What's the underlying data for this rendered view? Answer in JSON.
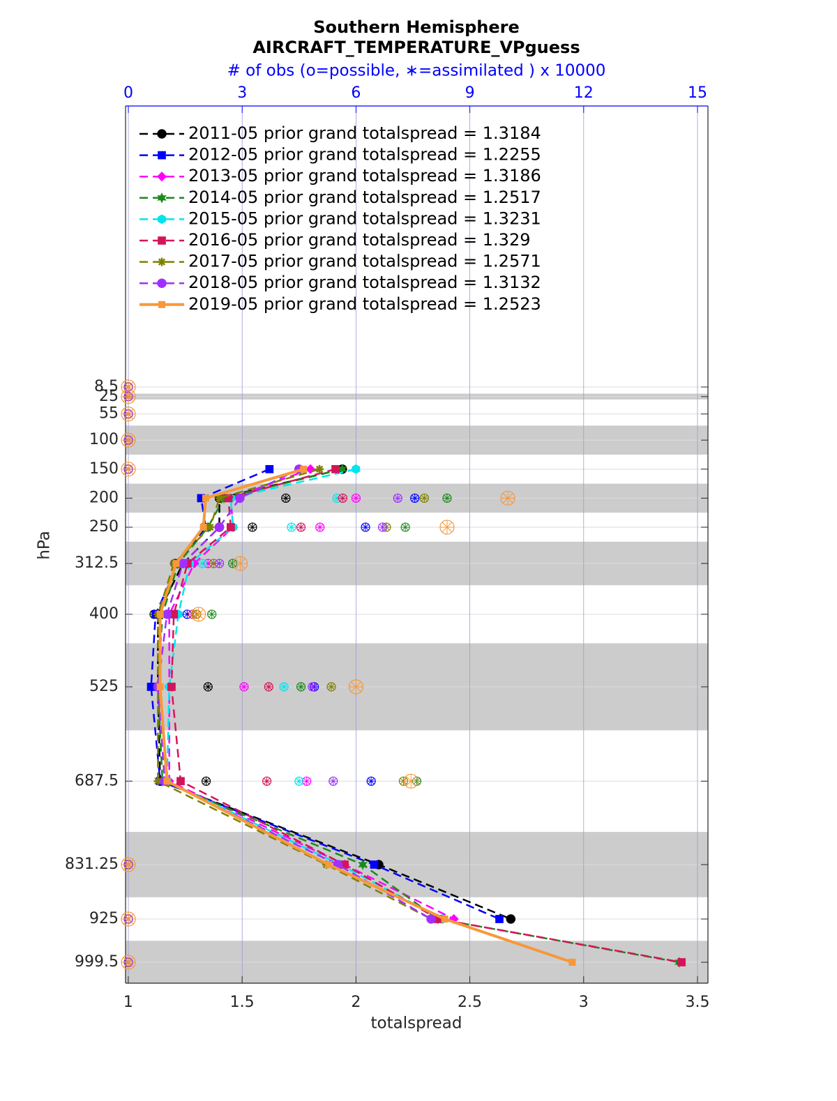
{
  "chart_data": {
    "type": "profile",
    "title": [
      "Southern Hemisphere",
      "AIRCRAFT_TEMPERATURE_VPguess"
    ],
    "x2label": "# of obs (o=possible, ∗=assimilated ) x 10000",
    "xlabel": "totalspread",
    "ylabel": "hPa",
    "xlim": [
      0.988,
      3.546
    ],
    "xticks": [
      1,
      1.5,
      2,
      2.5,
      3,
      3.5
    ],
    "x2lim": [
      -0.074,
      15.276
    ],
    "x2ticks": [
      0,
      3,
      6,
      9,
      12,
      15
    ],
    "ylim": [
      1035.5,
      -475.6
    ],
    "yticks": [
      8.5,
      25,
      55,
      100,
      150,
      200,
      250,
      312.5,
      400,
      525,
      687.5,
      831.25,
      925,
      999.5
    ],
    "shaded_layers": [
      [
        20,
        30
      ],
      [
        75,
        125
      ],
      [
        175,
        225
      ],
      [
        275,
        350
      ],
      [
        450,
        600
      ],
      [
        775,
        887.5
      ],
      [
        962.5,
        1035.5
      ]
    ],
    "grid": true,
    "legend": "upper left",
    "series": [
      {
        "name": "2011-05 prior grand totalspread = 1.3184",
        "color": "#000000",
        "line_style": "dashed",
        "marker": "circle",
        "values": [
          null,
          null,
          null,
          null,
          1.94,
          1.4,
          1.4,
          1.24,
          1.13,
          1.13,
          1.14,
          2.1,
          2.68,
          null
        ],
        "obs_count": [
          0,
          0,
          0,
          0,
          0,
          4.15,
          3.27,
          1.23,
          0.68,
          2.1,
          2.05,
          0,
          0,
          0
        ]
      },
      {
        "name": "2012-05 prior grand totalspread = 1.2255",
        "color": "#0000ff",
        "line_style": "dashed",
        "marker": "square",
        "values": [
          null,
          null,
          null,
          null,
          1.62,
          1.32,
          1.34,
          1.22,
          1.12,
          1.1,
          1.14,
          2.08,
          2.63,
          null
        ],
        "obs_count": [
          0,
          0,
          0,
          0,
          0,
          7.55,
          6.25,
          1.55,
          1.55,
          4.9,
          6.4,
          0,
          0,
          0
        ]
      },
      {
        "name": "2013-05 prior grand totalspread = 1.3186",
        "color": "#ff00ff",
        "line_style": "dashed",
        "marker": "diamond",
        "values": [
          null,
          null,
          null,
          null,
          1.8,
          1.45,
          1.46,
          1.29,
          1.18,
          1.18,
          1.18,
          1.95,
          2.43,
          null
        ],
        "obs_count": [
          0,
          0,
          0,
          0,
          0,
          6.0,
          5.05,
          2.1,
          1.27,
          3.05,
          4.7,
          0,
          0,
          0
        ]
      },
      {
        "name": "2014-05 prior grand totalspread = 1.2517",
        "color": "#1a8a1a",
        "line_style": "dashed",
        "marker": "star",
        "values": [
          null,
          null,
          null,
          null,
          1.94,
          1.42,
          1.35,
          1.22,
          1.15,
          1.13,
          1.15,
          2.03,
          2.36,
          3.42
        ],
        "obs_count": [
          0,
          0,
          0,
          0,
          0,
          8.4,
          7.3,
          2.75,
          2.2,
          4.55,
          7.6,
          0,
          0,
          0
        ]
      },
      {
        "name": "2015-05 prior grand totalspread = 1.3231",
        "color": "#00e5ee",
        "line_style": "dashed",
        "marker": "hexagon",
        "values": [
          null,
          null,
          null,
          null,
          2.0,
          1.45,
          1.46,
          1.27,
          1.22,
          1.18,
          1.17,
          1.93,
          2.38,
          null
        ],
        "obs_count": [
          0,
          0,
          0,
          0,
          0,
          5.5,
          4.3,
          1.95,
          1.2,
          4.1,
          4.5,
          0,
          0,
          0
        ]
      },
      {
        "name": "2016-05 prior grand totalspread = 1.329",
        "color": "#d4145a",
        "line_style": "dashed",
        "marker": "square",
        "values": [
          null,
          null,
          null,
          null,
          1.91,
          1.44,
          1.45,
          1.26,
          1.2,
          1.19,
          1.23,
          1.95,
          2.36,
          3.43
        ],
        "obs_count": [
          0,
          0,
          0,
          0,
          0,
          5.65,
          4.55,
          1.6,
          1.7,
          3.7,
          3.65,
          0,
          0,
          0
        ]
      },
      {
        "name": "2017-05 prior grand totalspread = 1.2571",
        "color": "#808000",
        "line_style": "dashed",
        "marker": "asterisk",
        "values": [
          null,
          null,
          null,
          null,
          1.84,
          1.4,
          1.36,
          1.2,
          1.13,
          1.13,
          1.13,
          1.87,
          2.33,
          null
        ],
        "obs_count": [
          0,
          0,
          0,
          0,
          0,
          7.8,
          6.8,
          2.25,
          1.8,
          5.35,
          7.25,
          0,
          0,
          0
        ]
      },
      {
        "name": "2018-05 prior grand totalspread = 1.3132",
        "color": "#a030ff",
        "line_style": "dashed",
        "marker": "circle",
        "values": [
          null,
          null,
          null,
          null,
          1.75,
          1.49,
          1.4,
          1.24,
          1.17,
          1.13,
          1.16,
          1.92,
          2.33,
          null
        ],
        "obs_count": [
          0,
          0,
          0,
          0,
          0,
          7.1,
          6.7,
          2.4,
          1.05,
          4.85,
          5.4,
          0,
          0,
          0
        ]
      },
      {
        "name": "2019-05 prior grand totalspread = 1.2523",
        "color": "#f7983a",
        "line_style": "solid",
        "marker": "square",
        "values": [
          null,
          null,
          null,
          null,
          1.77,
          1.34,
          1.33,
          1.21,
          1.14,
          1.14,
          1.17,
          1.88,
          2.39,
          2.95
        ],
        "obs_count": [
          0,
          0,
          0,
          0,
          0,
          10.0,
          8.4,
          2.95,
          1.85,
          6.0,
          7.45,
          0,
          0,
          0
        ]
      }
    ]
  }
}
